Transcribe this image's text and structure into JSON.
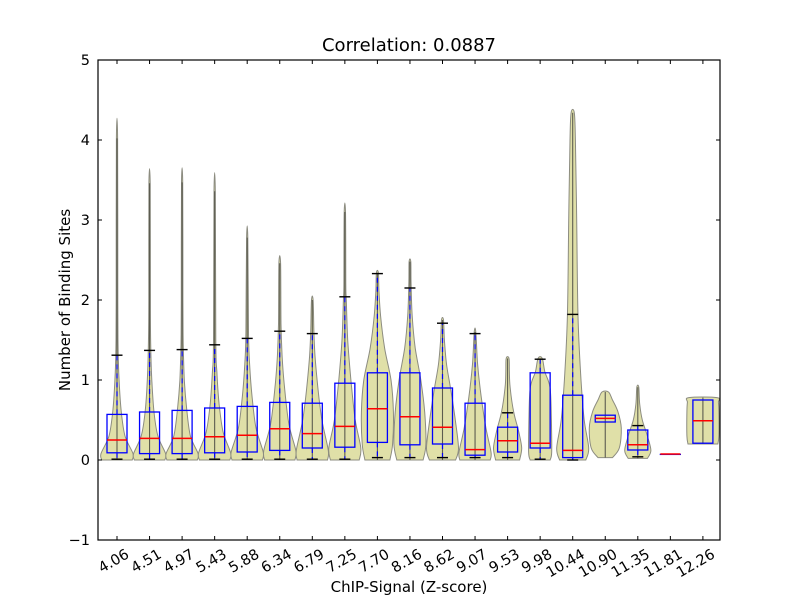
{
  "chart_data": {
    "type": "violin",
    "title": "Correlation: 0.0887",
    "xlabel": "ChIP-Signal (Z-score)",
    "ylabel": "Number of Binding Sites",
    "ylim": [
      -1,
      5
    ],
    "yticks": [
      "−1",
      "0",
      "1",
      "2",
      "3",
      "4",
      "5"
    ],
    "ytick_values": [
      -1,
      0,
      1,
      2,
      3,
      4,
      5
    ],
    "categories": [
      "4.06",
      "4.51",
      "4.97",
      "5.43",
      "5.88",
      "6.34",
      "6.79",
      "7.25",
      "7.70",
      "8.16",
      "8.62",
      "9.07",
      "9.53",
      "9.98",
      "10.44",
      "10.90",
      "11.35",
      "11.81",
      "12.26"
    ],
    "grid": false,
    "legend": null,
    "colors": {
      "background": "#ffffff",
      "axis": "#000000",
      "violin_fill": "#e0e0a8",
      "violin_edge": "#8c8c80",
      "center_line": "#5c5c50",
      "box": "#0000ff",
      "median": "#ff0000",
      "whisker": "#0000ff",
      "cap": "#000000"
    },
    "violins": [
      {
        "x": "4.06",
        "violin_min": 0.0,
        "violin_max": 4.02,
        "q1": 0.09,
        "median": 0.25,
        "q3": 0.57,
        "whisker_low": 0.01,
        "whisker_high": 1.31,
        "profile": [
          [
            0.0,
            0.95
          ],
          [
            0.08,
            1.0
          ],
          [
            0.3,
            0.5
          ],
          [
            0.6,
            0.27
          ],
          [
            1.0,
            0.13
          ],
          [
            1.4,
            0.07
          ],
          [
            2.0,
            0.05
          ],
          [
            4.02,
            0.04
          ]
        ]
      },
      {
        "x": "4.51",
        "violin_min": 0.0,
        "violin_max": 3.46,
        "q1": 0.08,
        "median": 0.27,
        "q3": 0.6,
        "whisker_low": 0.01,
        "whisker_high": 1.37,
        "profile": [
          [
            0.0,
            0.95
          ],
          [
            0.08,
            1.0
          ],
          [
            0.3,
            0.52
          ],
          [
            0.6,
            0.28
          ],
          [
            1.0,
            0.14
          ],
          [
            1.45,
            0.07
          ],
          [
            2.0,
            0.05
          ],
          [
            3.46,
            0.04
          ]
        ]
      },
      {
        "x": "4.97",
        "violin_min": 0.0,
        "violin_max": 3.47,
        "q1": 0.08,
        "median": 0.27,
        "q3": 0.62,
        "whisker_low": 0.01,
        "whisker_high": 1.38,
        "profile": [
          [
            0.0,
            0.95
          ],
          [
            0.08,
            1.0
          ],
          [
            0.3,
            0.52
          ],
          [
            0.65,
            0.28
          ],
          [
            1.0,
            0.14
          ],
          [
            1.45,
            0.07
          ],
          [
            2.0,
            0.05
          ],
          [
            3.47,
            0.04
          ]
        ]
      },
      {
        "x": "5.43",
        "violin_min": 0.0,
        "violin_max": 3.36,
        "q1": 0.09,
        "median": 0.29,
        "q3": 0.65,
        "whisker_low": 0.01,
        "whisker_high": 1.44,
        "profile": [
          [
            0.0,
            0.95
          ],
          [
            0.09,
            1.0
          ],
          [
            0.35,
            0.53
          ],
          [
            0.7,
            0.28
          ],
          [
            1.1,
            0.14
          ],
          [
            1.5,
            0.07
          ],
          [
            3.36,
            0.04
          ]
        ]
      },
      {
        "x": "5.88",
        "violin_min": 0.0,
        "violin_max": 2.78,
        "q1": 0.1,
        "median": 0.31,
        "q3": 0.67,
        "whisker_low": 0.01,
        "whisker_high": 1.52,
        "profile": [
          [
            0.0,
            0.95
          ],
          [
            0.1,
            1.0
          ],
          [
            0.4,
            0.55
          ],
          [
            0.8,
            0.3
          ],
          [
            1.2,
            0.15
          ],
          [
            1.6,
            0.08
          ],
          [
            2.78,
            0.04
          ]
        ]
      },
      {
        "x": "6.34",
        "violin_min": 0.0,
        "violin_max": 2.46,
        "q1": 0.12,
        "median": 0.39,
        "q3": 0.72,
        "whisker_low": 0.01,
        "whisker_high": 1.61,
        "profile": [
          [
            0.0,
            0.95
          ],
          [
            0.12,
            1.0
          ],
          [
            0.45,
            0.57
          ],
          [
            0.9,
            0.3
          ],
          [
            1.3,
            0.15
          ],
          [
            1.7,
            0.08
          ],
          [
            2.46,
            0.05
          ]
        ]
      },
      {
        "x": "6.79",
        "violin_min": 0.0,
        "violin_max": 2.0,
        "q1": 0.15,
        "median": 0.33,
        "q3": 0.71,
        "whisker_low": 0.01,
        "whisker_high": 1.58,
        "profile": [
          [
            0.0,
            0.95
          ],
          [
            0.12,
            1.0
          ],
          [
            0.5,
            0.6
          ],
          [
            0.9,
            0.35
          ],
          [
            1.3,
            0.17
          ],
          [
            1.6,
            0.1
          ],
          [
            2.0,
            0.05
          ]
        ]
      },
      {
        "x": "7.25",
        "violin_min": 0.0,
        "violin_max": 3.1,
        "q1": 0.16,
        "median": 0.42,
        "q3": 0.96,
        "whisker_low": 0.01,
        "whisker_high": 2.04,
        "profile": [
          [
            0.0,
            0.9
          ],
          [
            0.15,
            1.0
          ],
          [
            0.5,
            0.65
          ],
          [
            1.0,
            0.38
          ],
          [
            1.5,
            0.18
          ],
          [
            2.0,
            0.09
          ],
          [
            2.2,
            0.06
          ],
          [
            3.1,
            0.04
          ]
        ]
      },
      {
        "x": "7.70",
        "violin_min": 0.0,
        "violin_max": 2.34,
        "q1": 0.22,
        "median": 0.64,
        "q3": 1.09,
        "whisker_low": 0.03,
        "whisker_high": 2.33,
        "profile": [
          [
            0.0,
            0.78
          ],
          [
            0.2,
            0.95
          ],
          [
            0.6,
            1.0
          ],
          [
            1.0,
            0.85
          ],
          [
            1.4,
            0.45
          ],
          [
            1.8,
            0.2
          ],
          [
            2.1,
            0.1
          ],
          [
            2.34,
            0.06
          ]
        ]
      },
      {
        "x": "8.16",
        "violin_min": 0.0,
        "violin_max": 2.48,
        "q1": 0.19,
        "median": 0.54,
        "q3": 1.09,
        "whisker_low": 0.03,
        "whisker_high": 2.15,
        "profile": [
          [
            0.0,
            0.82
          ],
          [
            0.2,
            1.0
          ],
          [
            0.6,
            0.92
          ],
          [
            1.0,
            0.68
          ],
          [
            1.4,
            0.33
          ],
          [
            1.8,
            0.14
          ],
          [
            2.2,
            0.07
          ],
          [
            2.48,
            0.05
          ]
        ]
      },
      {
        "x": "8.62",
        "violin_min": 0.0,
        "violin_max": 1.75,
        "q1": 0.2,
        "median": 0.41,
        "q3": 0.9,
        "whisker_low": 0.03,
        "whisker_high": 1.71,
        "profile": [
          [
            0.0,
            0.82
          ],
          [
            0.15,
            1.0
          ],
          [
            0.5,
            0.8
          ],
          [
            0.9,
            0.5
          ],
          [
            1.2,
            0.25
          ],
          [
            1.5,
            0.12
          ],
          [
            1.75,
            0.06
          ]
        ]
      },
      {
        "x": "9.07",
        "violin_min": 0.0,
        "violin_max": 1.6,
        "q1": 0.06,
        "median": 0.13,
        "q3": 0.71,
        "whisker_low": 0.03,
        "whisker_high": 1.58,
        "profile": [
          [
            0.0,
            0.95
          ],
          [
            0.1,
            1.0
          ],
          [
            0.4,
            0.68
          ],
          [
            0.8,
            0.38
          ],
          [
            1.2,
            0.16
          ],
          [
            1.6,
            0.05
          ]
        ]
      },
      {
        "x": "9.53",
        "violin_min": 0.0,
        "violin_max": 1.27,
        "q1": 0.1,
        "median": 0.24,
        "q3": 0.41,
        "whisker_low": 0.03,
        "whisker_high": 0.59,
        "profile": [
          [
            0.0,
            0.75
          ],
          [
            0.15,
            0.88
          ],
          [
            0.35,
            0.7
          ],
          [
            0.6,
            0.38
          ],
          [
            0.9,
            0.16
          ],
          [
            1.1,
            0.11
          ],
          [
            1.27,
            0.09
          ]
        ]
      },
      {
        "x": "9.98",
        "violin_min": 0.0,
        "violin_max": 1.27,
        "q1": 0.15,
        "median": 0.21,
        "q3": 1.09,
        "whisker_low": 0.01,
        "whisker_high": 1.26,
        "profile": [
          [
            0.0,
            0.62
          ],
          [
            0.1,
            0.72
          ],
          [
            0.5,
            0.7
          ],
          [
            0.9,
            0.62
          ],
          [
            1.1,
            0.3
          ],
          [
            1.27,
            0.13
          ]
        ]
      },
      {
        "x": "10.44",
        "violin_min": 0.0,
        "violin_max": 4.34,
        "q1": 0.03,
        "median": 0.12,
        "q3": 0.81,
        "whisker_low": 0.0,
        "whisker_high": 1.82,
        "profile": [
          [
            0.0,
            0.82
          ],
          [
            0.15,
            1.0
          ],
          [
            0.5,
            0.72
          ],
          [
            1.0,
            0.52
          ],
          [
            1.8,
            0.33
          ],
          [
            3.0,
            0.25
          ],
          [
            4.0,
            0.17
          ],
          [
            4.34,
            0.1
          ]
        ]
      },
      {
        "x": "10.90",
        "violin_min": 0.03,
        "violin_max": 0.85,
        "q1": 0.475,
        "median": 0.52,
        "q3": 0.56,
        "whisker_low": null,
        "whisker_high": null,
        "profile": [
          [
            0.03,
            0.45
          ],
          [
            0.15,
            0.88
          ],
          [
            0.4,
            1.0
          ],
          [
            0.6,
            0.8
          ],
          [
            0.75,
            0.45
          ],
          [
            0.85,
            0.2
          ]
        ]
      },
      {
        "x": "11.35",
        "violin_min": 0.02,
        "violin_max": 0.91,
        "q1": 0.125,
        "median": 0.19,
        "q3": 0.375,
        "whisker_low": 0.04,
        "whisker_high": 0.43,
        "profile": [
          [
            0.02,
            0.6
          ],
          [
            0.12,
            0.82
          ],
          [
            0.3,
            0.6
          ],
          [
            0.5,
            0.28
          ],
          [
            0.7,
            0.12
          ],
          [
            0.91,
            0.06
          ]
        ]
      },
      {
        "x": "11.81",
        "violin_min": null,
        "violin_max": null,
        "q1": 0.07,
        "median": 0.075,
        "q3": 0.07,
        "whisker_low": null,
        "whisker_high": null,
        "profile": []
      },
      {
        "x": "12.26",
        "violin_min": 0.2,
        "violin_max": 0.78,
        "q1": 0.21,
        "median": 0.49,
        "q3": 0.75,
        "whisker_low": null,
        "whisker_high": null,
        "profile": [
          [
            0.2,
            0.93
          ],
          [
            0.3,
            1.0
          ],
          [
            0.6,
            1.0
          ],
          [
            0.72,
            0.97
          ],
          [
            0.78,
            0.88
          ]
        ]
      }
    ]
  }
}
